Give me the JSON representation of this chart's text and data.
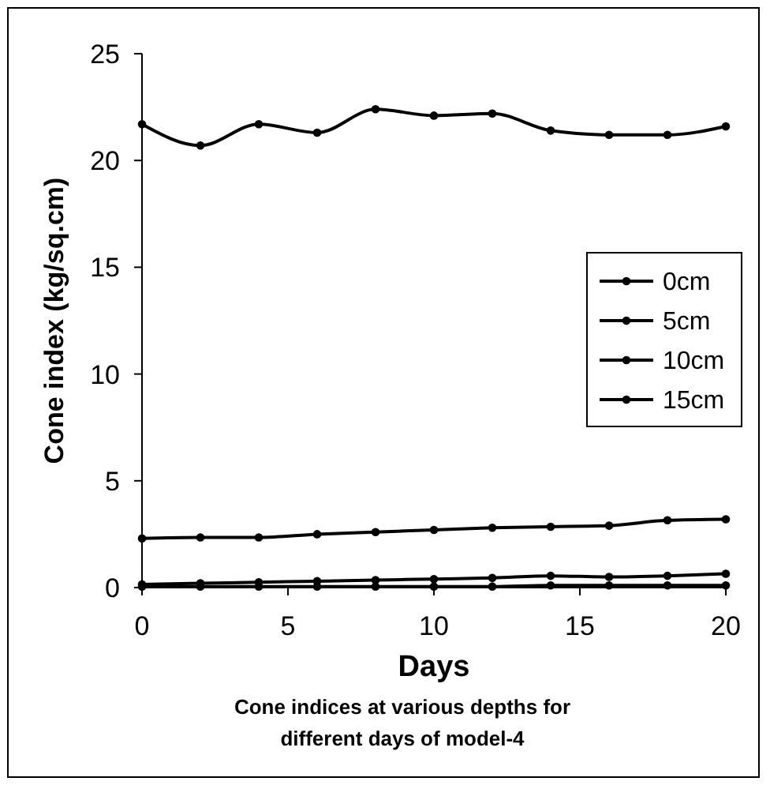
{
  "chart_data": {
    "type": "line",
    "title": "Cone indices at various depths for different days of model-4",
    "xlabel": "Days",
    "ylabel": "Cone index (kg/sq.cm)",
    "x": [
      0,
      2,
      4,
      6,
      8,
      10,
      12,
      14,
      16,
      18,
      20
    ],
    "series": [
      {
        "name": "0cm",
        "color": "#000000",
        "values": [
          0.05,
          0.05,
          0.05,
          0.05,
          0.05,
          0.05,
          0.05,
          0.1,
          0.1,
          0.1,
          0.1
        ]
      },
      {
        "name": "5cm",
        "color": "#000000",
        "values": [
          0.15,
          0.2,
          0.25,
          0.3,
          0.35,
          0.4,
          0.45,
          0.55,
          0.5,
          0.55,
          0.65
        ]
      },
      {
        "name": "10cm",
        "color": "#000000",
        "values": [
          2.3,
          2.35,
          2.35,
          2.5,
          2.6,
          2.7,
          2.8,
          2.85,
          2.9,
          3.15,
          3.2
        ]
      },
      {
        "name": "15cm",
        "color": "#000000",
        "values": [
          21.7,
          20.7,
          21.7,
          21.3,
          22.4,
          22.1,
          22.2,
          21.4,
          21.2,
          21.2,
          21.6
        ]
      }
    ],
    "xlim": [
      0,
      20
    ],
    "xticks": [
      0,
      5,
      10,
      15,
      20
    ],
    "ylim": [
      0,
      25
    ],
    "yticks": [
      0,
      5,
      10,
      15,
      20,
      25
    ],
    "grid": false,
    "legend": "right",
    "marker": "circle",
    "line_style": "solid"
  }
}
